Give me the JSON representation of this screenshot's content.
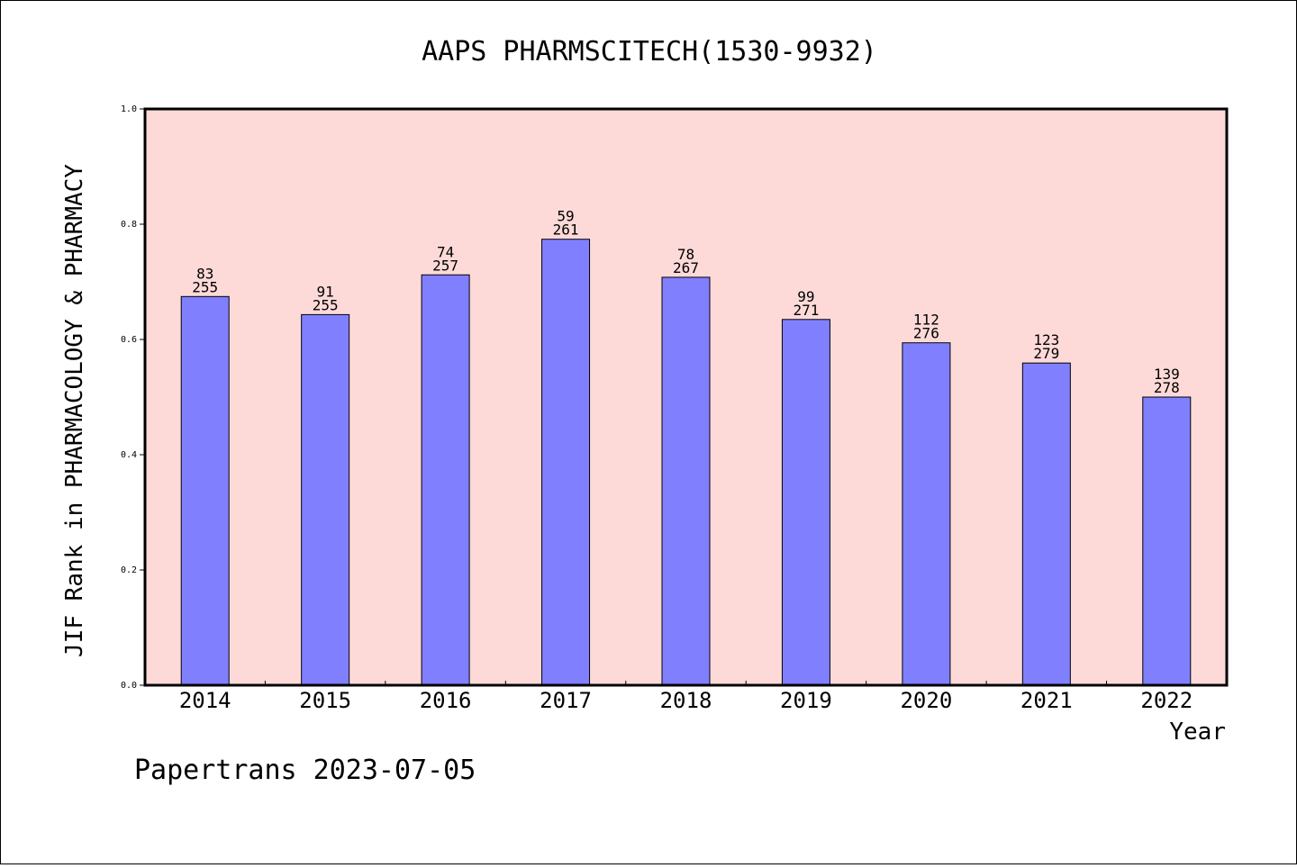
{
  "chart_data": {
    "type": "bar",
    "title": "AAPS PHARMSCITECH(1530-9932)",
    "xlabel": "Year",
    "ylabel": "JIF Rank in PHARMACOLOGY & PHARMACY",
    "ylim": [
      0,
      1.0
    ],
    "yticks": [
      "0.0",
      "0.2",
      "0.4",
      "0.6",
      "0.8",
      "1.0"
    ],
    "categories": [
      "2014",
      "2015",
      "2016",
      "2017",
      "2018",
      "2019",
      "2020",
      "2021",
      "2022"
    ],
    "values": [
      0.6745,
      0.6431,
      0.7121,
      0.7739,
      0.7079,
      0.6347,
      0.5942,
      0.5591,
      0.5
    ],
    "rank": [
      "83",
      "91",
      "74",
      "59",
      "78",
      "99",
      "112",
      "123",
      "139"
    ],
    "total": [
      "255",
      "255",
      "257",
      "261",
      "267",
      "271",
      "276",
      "279",
      "278"
    ],
    "grid": false,
    "colors": {
      "bar": "#8080ff",
      "plot_background": "#fddad8"
    }
  },
  "footer": "Papertrans 2023-07-05"
}
